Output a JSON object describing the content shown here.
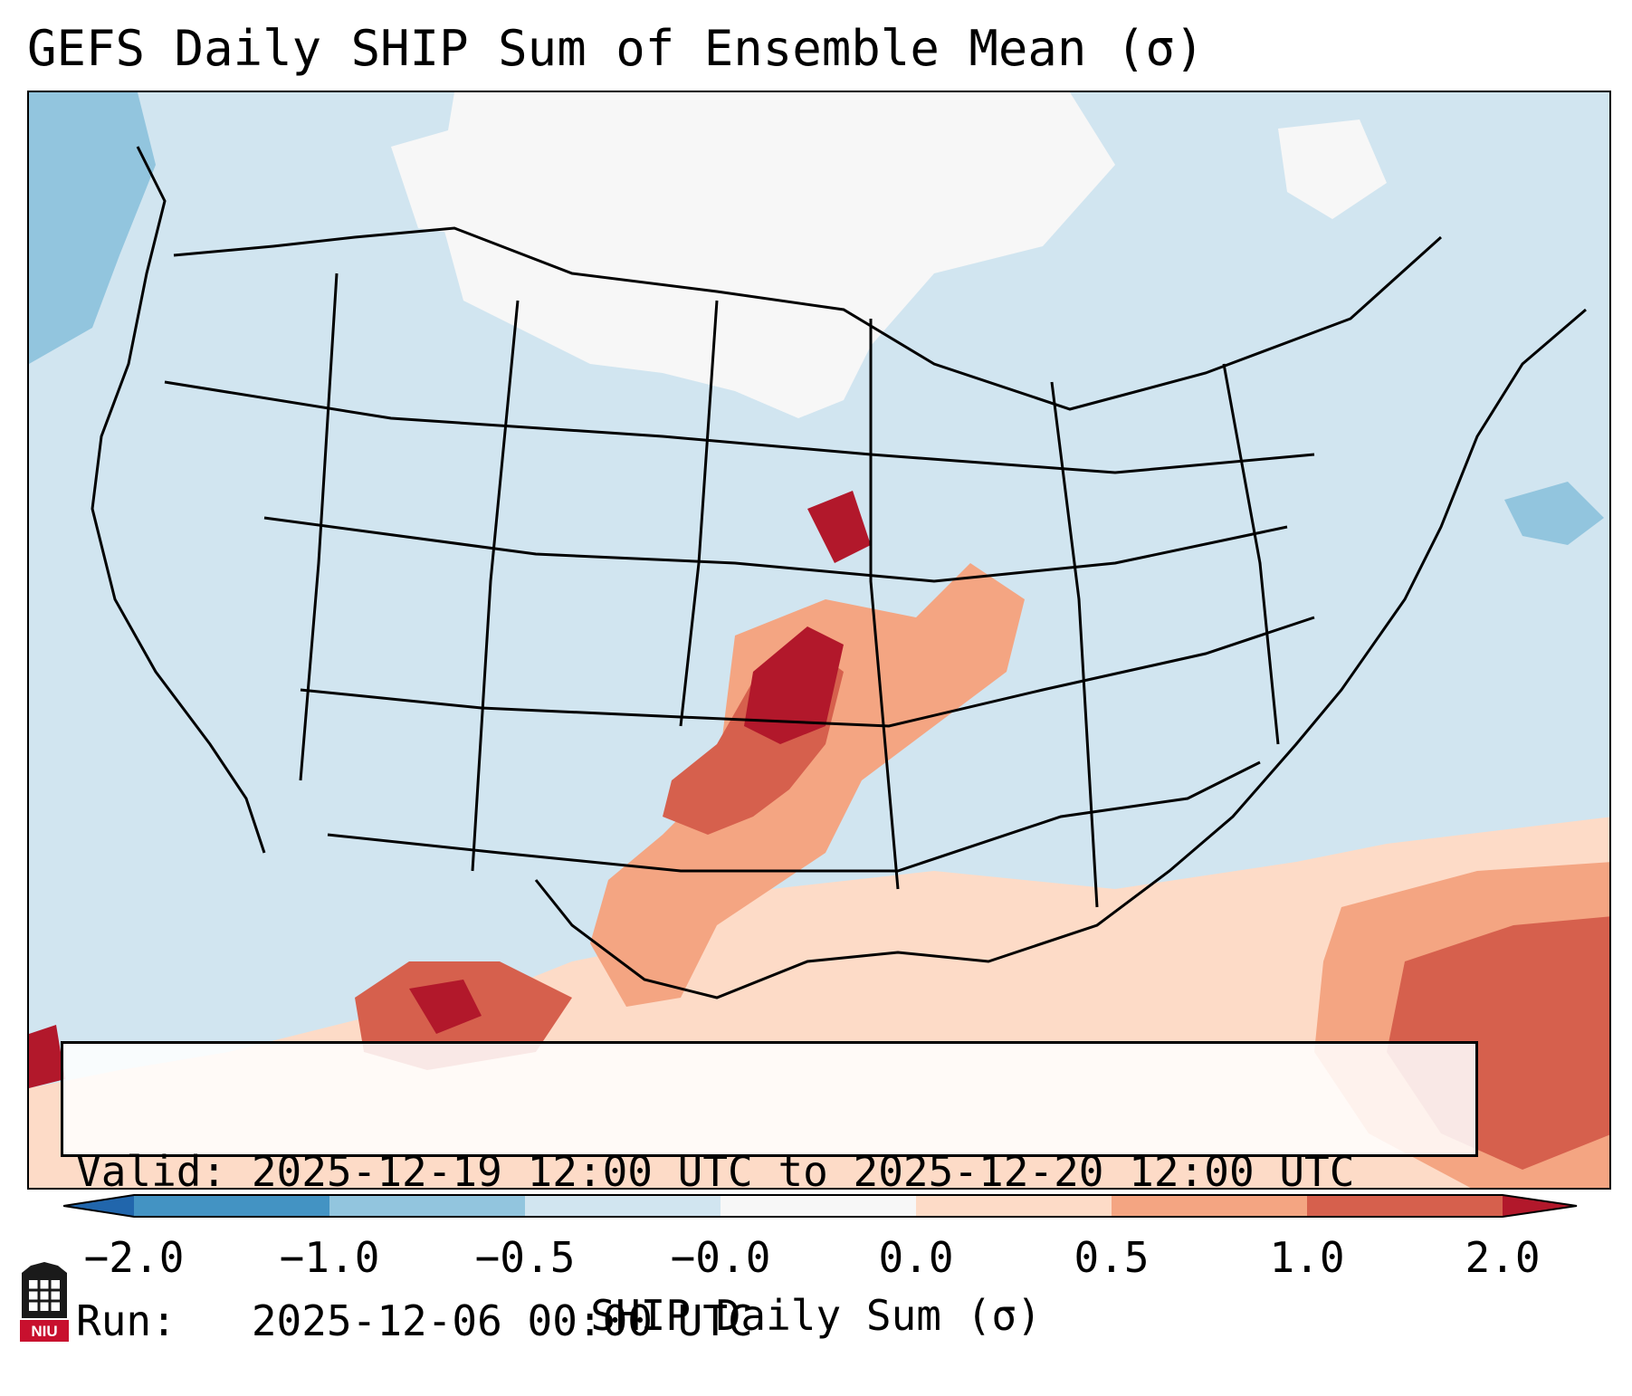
{
  "title": "GEFS Daily SHIP Sum of Ensemble Mean (σ)",
  "info": {
    "valid": "Valid: 2025-12-19 12:00 UTC to 2025-12-20 12:00 UTC",
    "run": "Run:   2025-12-06 00:00 UTC"
  },
  "colorbar": {
    "label": "SHIP Daily Sum (σ)",
    "ticks": [
      "−2.0",
      "−1.0",
      "−0.5",
      "−0.0",
      "0.0",
      "0.5",
      "1.0",
      "2.0"
    ],
    "colors": {
      "below_-2": "#2166ac",
      "-2_to_-1": "#4393c3",
      "-1_to_-0.5": "#92c5de",
      "-0.5_to_0": "#d1e5f0",
      "0_band": "#f7f7f7",
      "0_to_0.5": "#fddbc7",
      "0.5_to_1": "#f4a582",
      "1_to_2": "#d6604d",
      "above_2": "#b2182b"
    }
  },
  "map": {
    "region": "Contiguous United States",
    "projection": "lambert-conformal",
    "background_value_color": "#d1e5f0"
  },
  "logo": {
    "name": "niu-logo",
    "text": "NIU"
  }
}
